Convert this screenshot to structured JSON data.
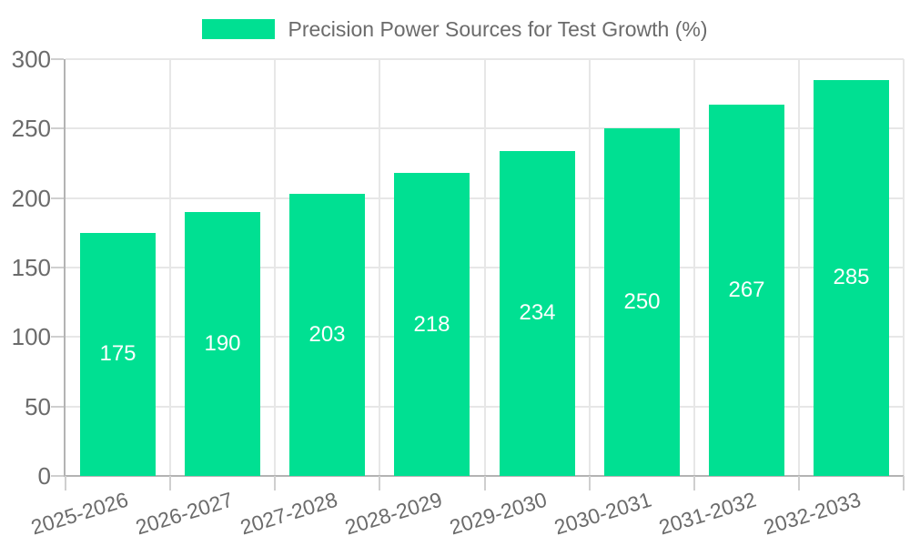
{
  "chart_data": {
    "type": "bar",
    "title": "Precision Power Sources for Test Growth (%)",
    "categories": [
      "2025-2026",
      "2026-2027",
      "2027-2028",
      "2028-2029",
      "2029-2030",
      "2030-2031",
      "2031-2032",
      "2032-2033"
    ],
    "values": [
      175,
      190,
      203,
      218,
      234,
      250,
      267,
      285
    ],
    "xlabel": "",
    "ylabel": "",
    "ylim": [
      0,
      300
    ],
    "yticks": [
      0,
      50,
      100,
      150,
      200,
      250,
      300
    ],
    "grid": "on",
    "legend_position": "top",
    "bar_value_labels": [
      "175",
      "190",
      "203",
      "218",
      "234",
      "250",
      "267",
      "285"
    ],
    "ytick_labels": [
      "0",
      "50",
      "100",
      "150",
      "200",
      "250",
      "300"
    ]
  },
  "colors": {
    "bar": "#00e092",
    "text": "#6b6b6b",
    "value_label": "#ffffff",
    "gridline": "#e7e7e7",
    "axis_line": "#b3b3b3",
    "tick": "#cfcfcf",
    "background": "#ffffff"
  }
}
